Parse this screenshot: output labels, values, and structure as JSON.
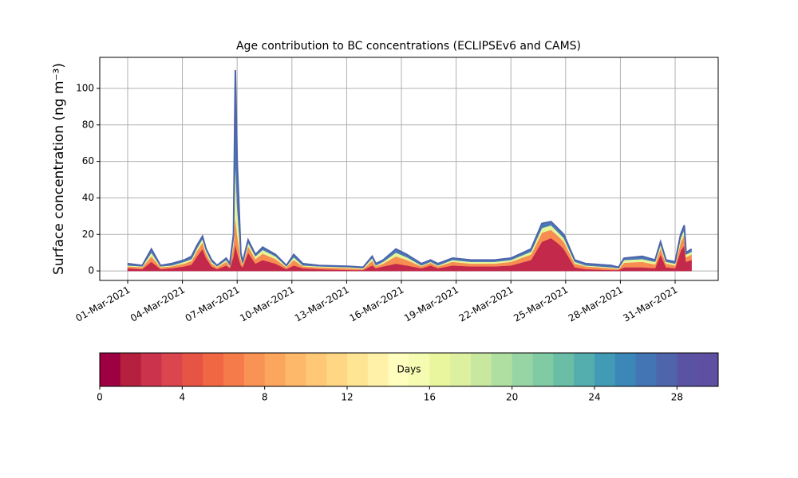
{
  "chart_data": {
    "type": "stacked_area",
    "title": "Age contribution to BC concentrations (ECLIPSEv6 and CAMS)",
    "y_label": "Surface concentration (ng m⁻³)",
    "x": [
      0,
      0.8,
      1.3,
      1.8,
      2.4,
      3.1,
      3.5,
      3.8,
      4.1,
      4.3,
      4.6,
      4.9,
      5.4,
      5.6,
      5.8,
      5.9,
      6.0,
      6.2,
      6.3,
      6.6,
      7.0,
      7.4,
      8.1,
      8.7,
      9.1,
      9.6,
      10.5,
      12.2,
      12.9,
      13.4,
      13.6,
      14.0,
      14.7,
      15.3,
      16.1,
      16.6,
      17.0,
      17.8,
      18.8,
      20.1,
      21.0,
      22.1,
      22.7,
      23.2,
      23.6,
      23.9,
      24.5,
      25.1,
      26.5,
      26.9,
      27.2,
      28.2,
      28.9,
      29.2,
      29.5,
      30.0,
      30.3,
      30.5,
      30.6,
      30.9
    ],
    "series": [
      {
        "color": "#c2294a",
        "values": [
          1.5,
          1,
          5,
          1,
          1.5,
          2.5,
          3.5,
          8,
          12,
          7,
          2.5,
          1,
          3,
          1.5,
          8,
          15,
          10,
          3,
          2,
          10,
          4,
          6,
          4,
          1,
          3,
          1.5,
          1,
          0.5,
          0.5,
          3,
          1.5,
          2.5,
          4,
          3,
          1.5,
          3,
          1.5,
          3,
          2.5,
          2.5,
          3,
          6,
          16,
          18,
          15,
          12,
          2,
          1,
          0.5,
          0.5,
          2,
          2,
          1.5,
          9,
          2,
          1.5,
          11,
          14,
          5,
          6
        ]
      },
      {
        "color": "#f88d52",
        "values": [
          1,
          1,
          3,
          1,
          1,
          1.5,
          2,
          3,
          3.5,
          2.5,
          1.5,
          1,
          2,
          1,
          6,
          15,
          10,
          3,
          1.5,
          3.5,
          2.5,
          3.5,
          2.5,
          1,
          3,
          1,
          1,
          1,
          0.5,
          2.5,
          1,
          1.5,
          4,
          3,
          1,
          1.5,
          1,
          2,
          1.5,
          1.5,
          2,
          3,
          5,
          4.5,
          4,
          4,
          2,
          1.5,
          1,
          0.5,
          2.5,
          3,
          2,
          3.5,
          2,
          1.5,
          4.5,
          5.5,
          2.5,
          3
        ]
      },
      {
        "color": "#e6f598",
        "values": [
          0.5,
          0.5,
          2,
          0.5,
          0.5,
          1,
          1,
          1.5,
          2,
          1.5,
          1,
          0.5,
          1,
          0.5,
          3,
          30,
          15,
          2,
          0.5,
          2,
          1.5,
          2,
          1.5,
          0.5,
          1.5,
          0.5,
          0.5,
          0.5,
          0.5,
          1.5,
          0.5,
          1,
          2,
          1.5,
          0.5,
          0.5,
          0.5,
          1,
          1,
          1,
          1,
          1.5,
          2.5,
          2.5,
          2,
          2,
          1,
          0.5,
          0.5,
          0.5,
          1.5,
          1.5,
          1.5,
          2,
          1,
          1,
          2.5,
          3,
          1.5,
          1.5
        ]
      },
      {
        "color": "#4a7ab6",
        "values": [
          1,
          0.5,
          2,
          0.5,
          1,
          1,
          1.5,
          1.5,
          1.5,
          1,
          1,
          0.5,
          1,
          1,
          3,
          50,
          25,
          2,
          1,
          1.5,
          1,
          1.5,
          1,
          0.5,
          1.5,
          1,
          0.5,
          0.5,
          0.5,
          1,
          1,
          1,
          2,
          1.5,
          1,
          1,
          1,
          1,
          1,
          1,
          1,
          1.5,
          2.5,
          2,
          2,
          2,
          1,
          1,
          1,
          0.5,
          1,
          1.5,
          1,
          1.5,
          1,
          1,
          2,
          2.5,
          1,
          1.5
        ]
      }
    ],
    "outline_color": "#4e64ab",
    "xlim": [
      -1.53,
      32.36
    ],
    "ylim": [
      -5.2,
      117
    ],
    "xticks": [
      {
        "value": 0,
        "label": "01-Mar-2021"
      },
      {
        "value": 3,
        "label": "04-Mar-2021"
      },
      {
        "value": 6,
        "label": "07-Mar-2021"
      },
      {
        "value": 9,
        "label": "10-Mar-2021"
      },
      {
        "value": 12,
        "label": "13-Mar-2021"
      },
      {
        "value": 15,
        "label": "16-Mar-2021"
      },
      {
        "value": 18,
        "label": "19-Mar-2021"
      },
      {
        "value": 21,
        "label": "22-Mar-2021"
      },
      {
        "value": 24,
        "label": "25-Mar-2021"
      },
      {
        "value": 27,
        "label": "28-Mar-2021"
      },
      {
        "value": 30,
        "label": "31-Mar-2021"
      }
    ],
    "yticks": [
      0,
      20,
      40,
      60,
      80,
      100
    ],
    "grid": true,
    "colorbar": {
      "label": "Days",
      "lim": [
        0,
        30
      ],
      "ticks": [
        0,
        4,
        8,
        12,
        16,
        20,
        24,
        28
      ],
      "colors": [
        "#9e0142",
        "#b5203f",
        "#cb334c",
        "#da464d",
        "#e65446",
        "#f06744",
        "#f67b4a",
        "#f99355",
        "#fca55d",
        "#fdb869",
        "#fec877",
        "#fed684",
        "#fee593",
        "#fff2a8",
        "#fffebe",
        "#f5fbb0",
        "#eaf69e",
        "#dcf0a0",
        "#c7e89e",
        "#b0dfa2",
        "#98d5a4",
        "#80cba4",
        "#69bea5",
        "#54aead",
        "#429bb4",
        "#3a87b8",
        "#4374b3",
        "#4e64ab",
        "#5a53a4",
        "#5e4fa2"
      ]
    }
  }
}
